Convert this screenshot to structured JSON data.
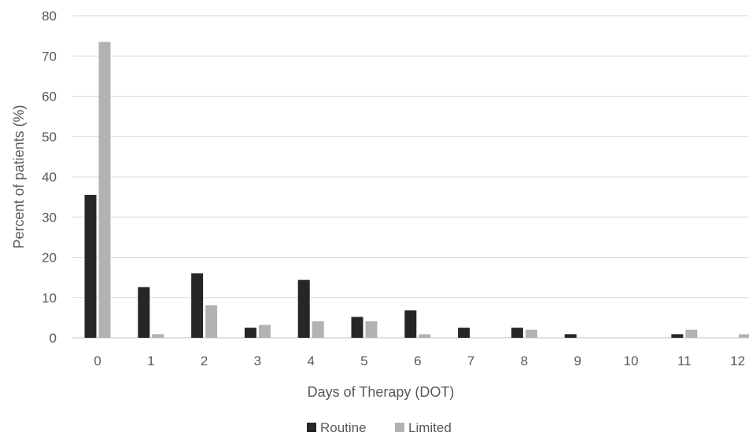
{
  "chart_data": {
    "type": "bar",
    "categories": [
      "0",
      "1",
      "2",
      "3",
      "4",
      "5",
      "6",
      "7",
      "8",
      "9",
      "10",
      "11",
      "12"
    ],
    "series": [
      {
        "name": "Routine",
        "color": "#262626",
        "values": [
          35.5,
          12.6,
          16.0,
          2.5,
          14.4,
          5.2,
          6.8,
          2.5,
          2.5,
          0.9,
          0,
          0.9,
          0
        ]
      },
      {
        "name": "Limited",
        "color": "#b2b2b2",
        "values": [
          73.5,
          0.9,
          8.1,
          3.2,
          4.1,
          4.1,
          0.9,
          0,
          2.0,
          0,
          0,
          2.0,
          0.9
        ]
      }
    ],
    "xlabel": "Days of Therapy (DOT)",
    "ylabel": "Percent of patients (%)",
    "ylim": [
      0,
      80
    ],
    "yticks": [
      0,
      10,
      20,
      30,
      40,
      50,
      60,
      70,
      80
    ],
    "grid": true,
    "legend_position": "bottom"
  }
}
